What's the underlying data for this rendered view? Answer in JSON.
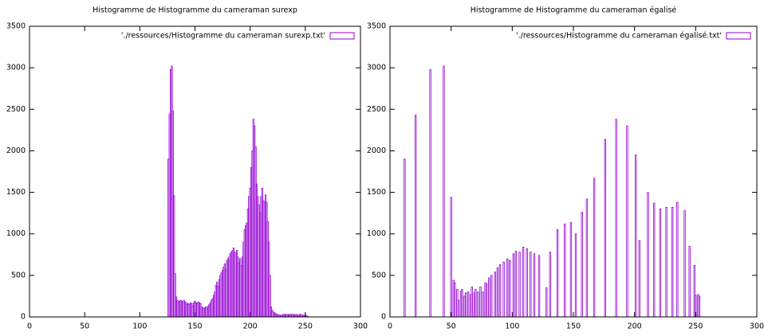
{
  "chart_data": [
    {
      "type": "bar",
      "title": "Histogramme de Histogramme du cameraman surexp",
      "x": [
        126,
        127,
        128,
        129,
        130,
        131,
        132,
        133,
        134,
        135,
        136,
        137,
        138,
        139,
        140,
        141,
        142,
        143,
        144,
        145,
        146,
        147,
        148,
        149,
        150,
        151,
        152,
        153,
        154,
        155,
        156,
        157,
        158,
        159,
        160,
        161,
        162,
        163,
        164,
        165,
        166,
        167,
        168,
        169,
        170,
        171,
        172,
        173,
        174,
        175,
        176,
        177,
        178,
        179,
        180,
        181,
        182,
        183,
        184,
        185,
        186,
        187,
        188,
        189,
        190,
        191,
        192,
        193,
        194,
        195,
        196,
        197,
        198,
        199,
        200,
        201,
        202,
        203,
        204,
        205,
        206,
        207,
        208,
        209,
        210,
        211,
        212,
        213,
        214,
        215,
        216,
        217,
        218,
        219,
        220,
        221,
        222,
        223,
        224,
        225,
        226,
        227,
        228,
        229,
        230,
        231,
        232,
        233,
        234,
        235,
        236,
        237,
        238,
        239,
        240,
        241,
        242,
        243,
        244,
        245,
        246,
        247,
        248,
        249,
        250,
        251,
        252
      ],
      "series": [
        {
          "name": "'./ressources/Histogramme du cameraman surexp.txt'",
          "color": "#9400d3",
          "values": [
            1900,
            2440,
            2980,
            3020,
            2480,
            1460,
            520,
            240,
            200,
            180,
            190,
            200,
            190,
            180,
            200,
            180,
            170,
            150,
            160,
            150,
            170,
            160,
            130,
            170,
            190,
            170,
            160,
            180,
            170,
            160,
            120,
            110,
            100,
            110,
            120,
            100,
            130,
            150,
            170,
            200,
            220,
            260,
            300,
            380,
            420,
            370,
            450,
            500,
            530,
            560,
            600,
            640,
            570,
            680,
            700,
            720,
            760,
            780,
            800,
            830,
            780,
            760,
            800,
            720,
            650,
            700,
            620,
            720,
            900,
            1050,
            1100,
            1130,
            1300,
            1450,
            1550,
            1800,
            2000,
            2380,
            2300,
            2050,
            1600,
            1450,
            1350,
            1250,
            1450,
            1550,
            1400,
            1380,
            1470,
            1380,
            1150,
            900,
            500,
            120,
            80,
            60,
            50,
            40,
            30,
            30,
            20,
            20,
            20,
            20,
            30,
            30,
            30,
            20,
            30,
            20,
            30,
            30,
            30,
            20,
            30,
            20,
            30,
            20,
            20,
            30,
            30,
            20,
            20,
            10,
            30,
            10,
            10
          ]
        }
      ],
      "xlim": [
        0,
        300
      ],
      "xticks": [
        0,
        50,
        100,
        150,
        200,
        250,
        300
      ],
      "ylim": [
        0,
        3500
      ],
      "yticks": [
        0,
        500,
        1000,
        1500,
        2000,
        2500,
        3000,
        3500
      ],
      "legend": "top right"
    },
    {
      "type": "bar",
      "title": "Histogramme de Histogramme du cameraman égalisé",
      "x": [
        12,
        21,
        33,
        44,
        50,
        52,
        53,
        55,
        56,
        58,
        59,
        61,
        62,
        64,
        66,
        67,
        69,
        70,
        72,
        74,
        76,
        78,
        79,
        81,
        83,
        86,
        88,
        90,
        93,
        96,
        98,
        101,
        103,
        106,
        109,
        112,
        115,
        118,
        122,
        128,
        131,
        137,
        143,
        148,
        152,
        157,
        161,
        167,
        176,
        185,
        194,
        201,
        204,
        211,
        216,
        221,
        226,
        231,
        235,
        241,
        245,
        249,
        250,
        252,
        253
      ],
      "series": [
        {
          "name": "'./ressources/Histogramme du cameraman égalisé.txt'",
          "color": "#9400d3",
          "values": [
            1900,
            2430,
            2980,
            3020,
            1440,
            440,
            410,
            330,
            200,
            310,
            330,
            250,
            290,
            300,
            270,
            360,
            290,
            330,
            300,
            360,
            300,
            410,
            400,
            470,
            500,
            540,
            590,
            630,
            660,
            700,
            680,
            760,
            790,
            780,
            840,
            820,
            780,
            760,
            740,
            350,
            780,
            1050,
            1120,
            1140,
            1000,
            1260,
            1420,
            1670,
            2140,
            2380,
            2300,
            1950,
            920,
            1500,
            1370,
            1300,
            1320,
            1320,
            1380,
            1280,
            850,
            620,
            260,
            270,
            250
          ]
        }
      ],
      "xlim": [
        0,
        300
      ],
      "xticks": [
        0,
        50,
        100,
        150,
        200,
        250,
        300
      ],
      "ylim": [
        0,
        3500
      ],
      "yticks": [
        0,
        500,
        1000,
        1500,
        2000,
        2500,
        3000,
        3500
      ],
      "legend": "top right"
    }
  ]
}
